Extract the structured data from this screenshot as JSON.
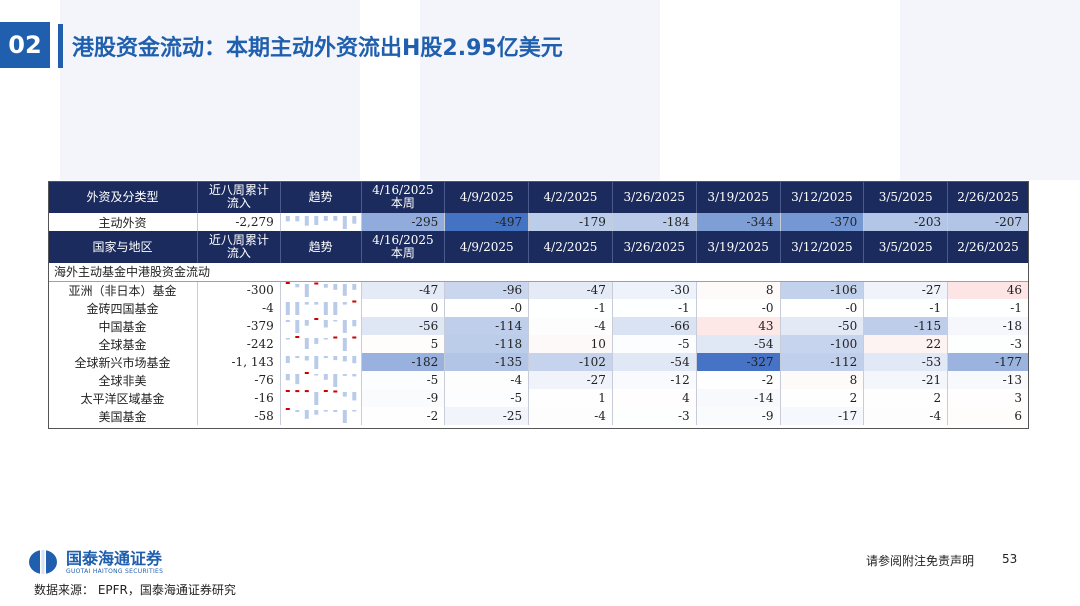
{
  "section": {
    "number": "02"
  },
  "title": "港股资金流动：本期主动外资流出H股2.95亿美元",
  "colors": {
    "brand": "#1f5fae",
    "header_bg": "#1c2b5e",
    "neg": "#4472c4",
    "pos": "#ee4444"
  },
  "table": {
    "header1": [
      "外资及分类型",
      "近八周累计流入",
      "趋势",
      "4/16/2025\n本周",
      "4/9/2025",
      "4/2/2025",
      "3/26/2025",
      "3/19/2025",
      "3/12/2025",
      "3/5/2025",
      "2/26/2025"
    ],
    "summary_row": {
      "name": "主动外资",
      "total": "-2,279",
      "values": [
        -295,
        -497,
        -179,
        -184,
        -344,
        -370,
        -203,
        -207
      ],
      "labels": [
        "-295",
        "-497",
        "-179",
        "-184",
        "-344",
        "-370",
        "-203",
        "-207"
      ]
    },
    "header2": [
      "国家与地区",
      "近八周累计流入",
      "趋势",
      "4/16/2025\n本周",
      "4/9/2025",
      "4/2/2025",
      "3/26/2025",
      "3/19/2025",
      "3/12/2025",
      "3/5/2025",
      "2/26/2025"
    ],
    "section_label": "海外主动基金中港股资金流动",
    "rows": [
      {
        "name": "亚洲（非日本）基金",
        "total": "-300",
        "values": [
          -47,
          -96,
          -47,
          -30,
          8,
          -106,
          -27,
          46
        ],
        "labels": [
          "-47",
          "-96",
          "-47",
          "-30",
          "8",
          "-106",
          "-27",
          "46"
        ]
      },
      {
        "name": "金砖四国基金",
        "total": "-4",
        "values": [
          0,
          -0.2,
          -1,
          -1,
          -0.2,
          -0.2,
          -1,
          -1
        ],
        "labels": [
          "0",
          "-0",
          "-1",
          "-1",
          "-0",
          "-0",
          "-1",
          "-1"
        ]
      },
      {
        "name": "中国基金",
        "total": "-379",
        "values": [
          -56,
          -114,
          -4,
          -66,
          43,
          -50,
          -115,
          -18
        ],
        "labels": [
          "-56",
          "-114",
          "-4",
          "-66",
          "43",
          "-50",
          "-115",
          "-18"
        ]
      },
      {
        "name": "全球基金",
        "total": "-242",
        "values": [
          5,
          -118,
          10,
          -5,
          -54,
          -100,
          22,
          -3
        ],
        "labels": [
          "5",
          "-118",
          "10",
          "-5",
          "-54",
          "-100",
          "22",
          "-3"
        ]
      },
      {
        "name": "全球新兴市场基金",
        "total": "-1, 143",
        "values": [
          -182,
          -135,
          -102,
          -54,
          -327,
          -112,
          -53,
          -177
        ],
        "labels": [
          "-182",
          "-135",
          "-102",
          "-54",
          "-327",
          "-112",
          "-53",
          "-177"
        ]
      },
      {
        "name": "全球非美",
        "total": "-76",
        "values": [
          -5,
          -4,
          -27,
          -12,
          -2,
          8,
          -21,
          -13
        ],
        "labels": [
          "-5",
          "-4",
          "-27",
          "-12",
          "-2",
          "8",
          "-21",
          "-13"
        ]
      },
      {
        "name": "太平洋区域基金",
        "total": "-16",
        "values": [
          -9,
          -5,
          1,
          4,
          -14,
          2,
          2,
          3
        ],
        "labels": [
          "-9",
          "-5",
          "1",
          "4",
          "-14",
          "2",
          "2",
          "3"
        ]
      },
      {
        "name": "美国基金",
        "total": "-58",
        "values": [
          -2,
          -25,
          -4,
          -3,
          -9,
          -17,
          -4,
          6
        ],
        "labels": [
          "-2",
          "-25",
          "-4",
          "-3",
          "-9",
          "-17",
          "-4",
          "6"
        ]
      }
    ]
  },
  "footer": {
    "logo_cn": "国泰海通证券",
    "logo_en": "GUOTAI HAITONG SECURITIES",
    "source": "数据来源： EPFR，国泰海通证券研究",
    "disclaimer": "请参阅附注免责声明",
    "page": "53"
  }
}
